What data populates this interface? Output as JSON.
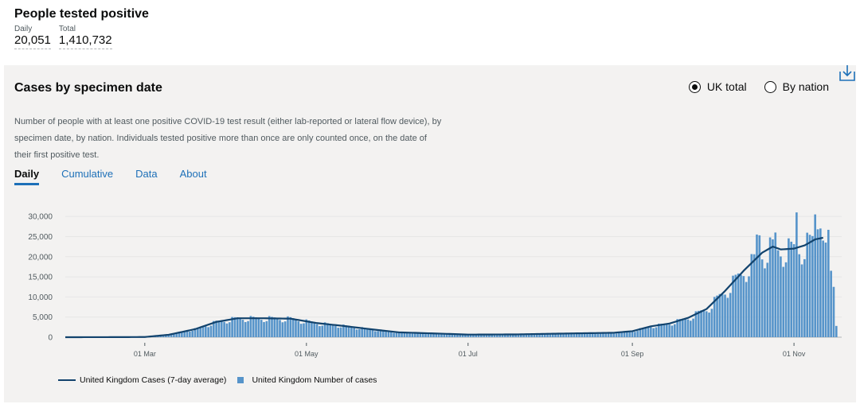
{
  "headline": {
    "title": "People tested positive",
    "metrics": [
      {
        "label": "Daily",
        "value": "20,051"
      },
      {
        "label": "Total",
        "value": "1,410,732"
      }
    ]
  },
  "card": {
    "title": "Cases by specimen date",
    "radios": [
      {
        "label": "UK total",
        "selected": true
      },
      {
        "label": "By nation",
        "selected": false
      }
    ],
    "download_icon": "download-icon",
    "description": "Number of people with at least one positive COVID-19 test result (either lab-reported or lateral flow device), by specimen date, by nation. Individuals tested positive more than once are only counted once, on the date of their first positive test.",
    "tabs": [
      "Daily",
      "Cumulative",
      "Data",
      "About"
    ],
    "active_tab": "Daily"
  },
  "colors": {
    "bar": "#5694ca",
    "line": "#12436d",
    "tab_link": "#1d70b8"
  },
  "chart_data": {
    "type": "bar",
    "x_start": "2020-01-31",
    "x_end": "2020-11-19",
    "x_ticks": [
      "01 Mar",
      "01 May",
      "01 Jul",
      "01 Sep",
      "01 Nov"
    ],
    "y_ticks": [
      "0",
      "5,000",
      "10,000",
      "15,000",
      "20,000",
      "25,000",
      "30,000"
    ],
    "ylim": [
      0,
      32000
    ],
    "grid": true,
    "legend_position": "bottom-left",
    "series": [
      {
        "name": "United Kingdom Cases (7-day average)",
        "kind": "line"
      },
      {
        "name": "United Kingdom Number of cases",
        "kind": "bar"
      }
    ],
    "average_points": [
      [
        "2020-01-31",
        0
      ],
      [
        "2020-02-20",
        20
      ],
      [
        "2020-03-01",
        50
      ],
      [
        "2020-03-10",
        600
      ],
      [
        "2020-03-20",
        2000
      ],
      [
        "2020-03-28",
        3800
      ],
      [
        "2020-04-05",
        4700
      ],
      [
        "2020-04-15",
        4700
      ],
      [
        "2020-04-25",
        4600
      ],
      [
        "2020-05-05",
        3500
      ],
      [
        "2020-05-15",
        2800
      ],
      [
        "2020-05-25",
        2000
      ],
      [
        "2020-06-05",
        1200
      ],
      [
        "2020-06-20",
        900
      ],
      [
        "2020-07-01",
        650
      ],
      [
        "2020-07-20",
        700
      ],
      [
        "2020-08-01",
        850
      ],
      [
        "2020-08-15",
        1000
      ],
      [
        "2020-08-25",
        1100
      ],
      [
        "2020-09-01",
        1500
      ],
      [
        "2020-09-08",
        2700
      ],
      [
        "2020-09-15",
        3400
      ],
      [
        "2020-09-22",
        4800
      ],
      [
        "2020-09-29",
        7000
      ],
      [
        "2020-10-06",
        11500
      ],
      [
        "2020-10-13",
        16500
      ],
      [
        "2020-10-20",
        21000
      ],
      [
        "2020-10-24",
        22500
      ],
      [
        "2020-10-27",
        21800
      ],
      [
        "2020-11-01",
        22000
      ],
      [
        "2020-11-05",
        22800
      ],
      [
        "2020-11-09",
        24300
      ],
      [
        "2020-11-12",
        24700
      ]
    ],
    "spikes": [
      [
        "2020-10-18",
        25500
      ],
      [
        "2020-10-19",
        25300
      ],
      [
        "2020-10-25",
        26000
      ],
      [
        "2020-11-02",
        31000
      ],
      [
        "2020-11-09",
        30500
      ],
      [
        "2020-11-10",
        26800
      ],
      [
        "2020-11-11",
        27000
      ],
      [
        "2020-11-12",
        24000
      ],
      [
        "2020-11-13",
        23500
      ],
      [
        "2020-11-15",
        16500
      ],
      [
        "2020-11-16",
        12500
      ],
      [
        "2020-11-17",
        2800
      ]
    ]
  },
  "legend": {
    "line_label": "United Kingdom Cases (7-day average)",
    "bar_label": "United Kingdom Number of cases"
  }
}
